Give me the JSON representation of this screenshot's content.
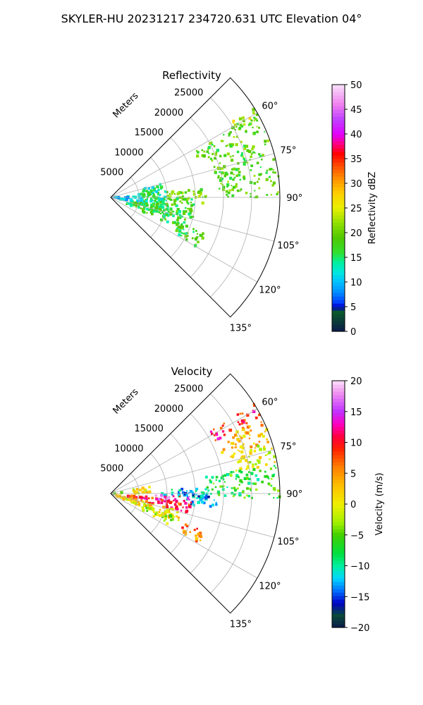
{
  "suptitle": "SKYLER-HU  20231217  234720.631 UTC Elevation 04°",
  "chart_data": [
    {
      "type": "heatmap",
      "panel": "reflectivity",
      "title": "Reflectivity",
      "radial_label": "Meters",
      "range_ticks": [
        5000,
        10000,
        15000,
        20000,
        25000
      ],
      "range_tick_labels": [
        "5000",
        "10000",
        "15000",
        "20000",
        "25000"
      ],
      "azimuth_range": [
        45,
        135
      ],
      "range_max": 30000,
      "azimuth_ticks": [
        60,
        75,
        90,
        105,
        120,
        135
      ],
      "azimuth_tick_labels": [
        "60°",
        "75°",
        "90°",
        "105°",
        "120°",
        "135°"
      ],
      "grid": true,
      "colorbar": {
        "label": "Reflectivity dBZ",
        "vmin": 0,
        "vmax": 50,
        "ticks": [
          0,
          5,
          10,
          15,
          20,
          25,
          30,
          35,
          40,
          45,
          50
        ],
        "tick_labels": [
          "0",
          "5",
          "10",
          "15",
          "20",
          "25",
          "30",
          "35",
          "40",
          "45",
          "50"
        ],
        "stops": [
          {
            "v": 0,
            "c": "#0a1a4a"
          },
          {
            "v": 2,
            "c": "#0a3a3a"
          },
          {
            "v": 4,
            "c": "#0a5a2a"
          },
          {
            "v": 5,
            "c": "#0000c8"
          },
          {
            "v": 6,
            "c": "#0040ff"
          },
          {
            "v": 8,
            "c": "#0090ff"
          },
          {
            "v": 10,
            "c": "#00c0ff"
          },
          {
            "v": 12,
            "c": "#00e8e0"
          },
          {
            "v": 14,
            "c": "#00f0a0"
          },
          {
            "v": 16,
            "c": "#30e030"
          },
          {
            "v": 19,
            "c": "#50c800"
          },
          {
            "v": 22,
            "c": "#90e000"
          },
          {
            "v": 25,
            "c": "#e8f000"
          },
          {
            "v": 28,
            "c": "#ffd000"
          },
          {
            "v": 31,
            "c": "#ff9000"
          },
          {
            "v": 34,
            "c": "#ff4000"
          },
          {
            "v": 36,
            "c": "#ff0000"
          },
          {
            "v": 38,
            "c": "#ff0080"
          },
          {
            "v": 40,
            "c": "#e000ff"
          },
          {
            "v": 43,
            "c": "#c040ff"
          },
          {
            "v": 46,
            "c": "#f080f0"
          },
          {
            "v": 50,
            "c": "#f8e0f8"
          }
        ]
      },
      "echo_regions": [
        {
          "az": [
            60,
            68
          ],
          "r": [
            17000,
            30000
          ],
          "value": 19
        },
        {
          "az": [
            58,
            62
          ],
          "r": [
            25000,
            30000
          ],
          "value": 24
        },
        {
          "az": [
            69,
            90
          ],
          "r": [
            19000,
            30000
          ],
          "value": 19
        },
        {
          "az": [
            84,
            94
          ],
          "r": [
            10000,
            17000
          ],
          "value": 20
        },
        {
          "az": [
            90,
            108
          ],
          "r": [
            6000,
            15000
          ],
          "value": 18
        },
        {
          "az": [
            100,
            114
          ],
          "r": [
            3000,
            14000
          ],
          "value": 17
        },
        {
          "az": [
            75,
            96
          ],
          "r": [
            5000,
            10000
          ],
          "value": 14
        },
        {
          "az": [
            88,
            100
          ],
          "r": [
            1000,
            6000
          ],
          "value": 11
        },
        {
          "az": [
            85,
            95
          ],
          "r": [
            0,
            1500
          ],
          "value": 10
        },
        {
          "az": [
            110,
            120
          ],
          "r": [
            13000,
            18000
          ],
          "value": 17
        }
      ]
    },
    {
      "type": "heatmap",
      "panel": "velocity",
      "title": "Velocity",
      "radial_label": "Meters",
      "range_ticks": [
        5000,
        10000,
        15000,
        20000,
        25000
      ],
      "range_tick_labels": [
        "5000",
        "10000",
        "15000",
        "20000",
        "25000"
      ],
      "azimuth_range": [
        45,
        135
      ],
      "range_max": 30000,
      "azimuth_ticks": [
        60,
        75,
        90,
        105,
        120,
        135
      ],
      "azimuth_tick_labels": [
        "60°",
        "75°",
        "90°",
        "105°",
        "120°",
        "135°"
      ],
      "grid": true,
      "colorbar": {
        "label": "Velocity (m/s)",
        "vmin": -20,
        "vmax": 20,
        "ticks": [
          -20,
          -15,
          -10,
          -5,
          0,
          5,
          10,
          15,
          20
        ],
        "tick_labels": [
          "−20",
          "−15",
          "−10",
          "−5",
          "0",
          "5",
          "10",
          "15",
          "20"
        ],
        "stops": [
          {
            "v": -20,
            "c": "#0a1a4a"
          },
          {
            "v": -18,
            "c": "#0a4a3a"
          },
          {
            "v": -16,
            "c": "#0000c8"
          },
          {
            "v": -14,
            "c": "#0070ff"
          },
          {
            "v": -12,
            "c": "#00d8ff"
          },
          {
            "v": -10,
            "c": "#00f0a0"
          },
          {
            "v": -8,
            "c": "#00e040"
          },
          {
            "v": -5,
            "c": "#40d000"
          },
          {
            "v": -3,
            "c": "#a0f000"
          },
          {
            "v": 0,
            "c": "#f0f000"
          },
          {
            "v": 3,
            "c": "#ffc000"
          },
          {
            "v": 6,
            "c": "#ff8000"
          },
          {
            "v": 9,
            "c": "#ff2000"
          },
          {
            "v": 11,
            "c": "#ff0040"
          },
          {
            "v": 13,
            "c": "#ff00c0"
          },
          {
            "v": 15,
            "c": "#c030ff"
          },
          {
            "v": 18,
            "c": "#f090f0"
          },
          {
            "v": 20,
            "c": "#f8e0f8"
          }
        ]
      },
      "echo_regions": [
        {
          "az": [
            58,
            64
          ],
          "r": [
            20000,
            30000
          ],
          "value": 10
        },
        {
          "az": [
            64,
            72
          ],
          "r": [
            21000,
            30000
          ],
          "value": 3
        },
        {
          "az": [
            72,
            80
          ],
          "r": [
            22000,
            30000
          ],
          "value": 0
        },
        {
          "az": [
            80,
            92
          ],
          "r": [
            17000,
            30000
          ],
          "value": -7
        },
        {
          "az": [
            86,
            94
          ],
          "r": [
            9000,
            17000
          ],
          "value": -11
        },
        {
          "az": [
            90,
            98
          ],
          "r": [
            13000,
            19000
          ],
          "value": -13
        },
        {
          "az": [
            92,
            98
          ],
          "r": [
            6000,
            14000
          ],
          "value": 15
        },
        {
          "az": [
            96,
            104
          ],
          "r": [
            3000,
            15000
          ],
          "value": 9
        },
        {
          "az": [
            104,
            114
          ],
          "r": [
            1000,
            13000
          ],
          "value": 1
        },
        {
          "az": [
            110,
            118
          ],
          "r": [
            6000,
            12000
          ],
          "value": -3
        },
        {
          "az": [
            80,
            90
          ],
          "r": [
            4000,
            7000
          ],
          "value": 0
        },
        {
          "az": [
            84,
            92
          ],
          "r": [
            0,
            2000
          ],
          "value": -4
        },
        {
          "az": [
            112,
            120
          ],
          "r": [
            14000,
            18000
          ],
          "value": 6
        }
      ]
    }
  ]
}
